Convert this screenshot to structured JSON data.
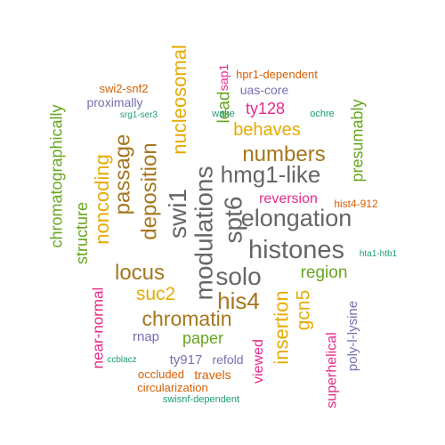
{
  "palette": {
    "green": "#66a61e",
    "orange": "#d95f02",
    "purple": "#7570b3",
    "magenta": "#e7298a",
    "gold": "#e6ab02",
    "brown": "#a6761d",
    "gray": "#666666",
    "teal": "#1b9e77"
  },
  "words": [
    {
      "id": "histones",
      "text": "histones",
      "color": "gray",
      "vertical": false
    },
    {
      "id": "elongation",
      "text": "elongation",
      "color": "gray",
      "vertical": false
    },
    {
      "id": "hmg1-like",
      "text": "hmg1-like",
      "color": "gray",
      "vertical": false
    },
    {
      "id": "solo",
      "text": "solo",
      "color": "gray",
      "vertical": false
    },
    {
      "id": "modulations",
      "text": "modulations",
      "color": "gray",
      "vertical": true
    },
    {
      "id": "spt6",
      "text": "spt6",
      "color": "gray",
      "vertical": true
    },
    {
      "id": "numbers",
      "text": "numbers",
      "color": "brown",
      "vertical": false
    },
    {
      "id": "swi1",
      "text": "swi1",
      "color": "gray",
      "vertical": true
    },
    {
      "id": "his4",
      "text": "his4",
      "color": "brown",
      "vertical": false
    },
    {
      "id": "chromatin",
      "text": "chromatin",
      "color": "brown",
      "vertical": false
    },
    {
      "id": "locus",
      "text": "locus",
      "color": "brown",
      "vertical": false
    },
    {
      "id": "deposition",
      "text": "deposition",
      "color": "brown",
      "vertical": true
    },
    {
      "id": "passage",
      "text": "passage",
      "color": "brown",
      "vertical": true
    },
    {
      "id": "nucleosomal",
      "text": "nucleosomal",
      "color": "gold",
      "vertical": true
    },
    {
      "id": "behaves",
      "text": "behaves",
      "color": "gold",
      "vertical": false
    },
    {
      "id": "suc2",
      "text": "suc2",
      "color": "gold",
      "vertical": false
    },
    {
      "id": "noncoding",
      "text": "noncoding",
      "color": "gold",
      "vertical": true
    },
    {
      "id": "insertion",
      "text": "insertion",
      "color": "gold",
      "vertical": true
    },
    {
      "id": "gcn5",
      "text": "gcn5",
      "color": "gold",
      "vertical": true
    },
    {
      "id": "region",
      "text": "region",
      "color": "green",
      "vertical": false
    },
    {
      "id": "paper",
      "text": "paper",
      "color": "green",
      "vertical": false
    },
    {
      "id": "lead",
      "text": "lead",
      "color": "green",
      "vertical": true
    },
    {
      "id": "presumably",
      "text": "presumably",
      "color": "green",
      "vertical": true
    },
    {
      "id": "structure",
      "text": "structure",
      "color": "green",
      "vertical": true
    },
    {
      "id": "chromatographically",
      "text": "chromatographically",
      "color": "green",
      "vertical": true
    },
    {
      "id": "ty128",
      "text": "ty128",
      "color": "magenta",
      "vertical": false
    },
    {
      "id": "reversion",
      "text": "reversion",
      "color": "magenta",
      "vertical": false
    },
    {
      "id": "viewed",
      "text": "viewed",
      "color": "magenta",
      "vertical": true
    },
    {
      "id": "near-normal",
      "text": "near-normal",
      "color": "magenta",
      "vertical": true
    },
    {
      "id": "superhelical",
      "text": "superhelical",
      "color": "magenta",
      "vertical": true
    },
    {
      "id": "sap1",
      "text": "sap1",
      "color": "magenta",
      "vertical": true
    },
    {
      "id": "poly-l-lysine",
      "text": "poly-l-lysine",
      "color": "purple",
      "vertical": true
    },
    {
      "id": "proximally",
      "text": "proximally",
      "color": "purple",
      "vertical": false
    },
    {
      "id": "uas-core",
      "text": "uas-core",
      "color": "purple",
      "vertical": false
    },
    {
      "id": "rnap",
      "text": "rnap",
      "color": "purple",
      "vertical": false
    },
    {
      "id": "ty917",
      "text": "ty917",
      "color": "purple",
      "vertical": false
    },
    {
      "id": "refold",
      "text": "refold",
      "color": "purple",
      "vertical": false
    },
    {
      "id": "swi2-snf2",
      "text": "swi2-snf2",
      "color": "orange",
      "vertical": false
    },
    {
      "id": "hpr1-dependent",
      "text": "hpr1-dependent",
      "color": "orange",
      "vertical": false
    },
    {
      "id": "hist4-912",
      "text": "hist4-912",
      "color": "orange",
      "vertical": false
    },
    {
      "id": "occluded",
      "text": "occluded",
      "color": "orange",
      "vertical": false
    },
    {
      "id": "travels",
      "text": "travels",
      "color": "orange",
      "vertical": false
    },
    {
      "id": "circularization",
      "text": "circularization",
      "color": "orange",
      "vertical": false
    },
    {
      "id": "srg1-ser3",
      "text": "srg1-ser3",
      "color": "teal",
      "vertical": false
    },
    {
      "id": "wake",
      "text": "wake",
      "color": "teal",
      "vertical": false
    },
    {
      "id": "ochre",
      "text": "ochre",
      "color": "teal",
      "vertical": false
    },
    {
      "id": "hta1-htb1",
      "text": "hta1-htb1",
      "color": "teal",
      "vertical": false
    },
    {
      "id": "ccblacz",
      "text": "ccblacz",
      "color": "teal",
      "vertical": false
    },
    {
      "id": "swisnf-dependent",
      "text": "swisnf-dependent",
      "color": "teal",
      "vertical": false
    }
  ]
}
